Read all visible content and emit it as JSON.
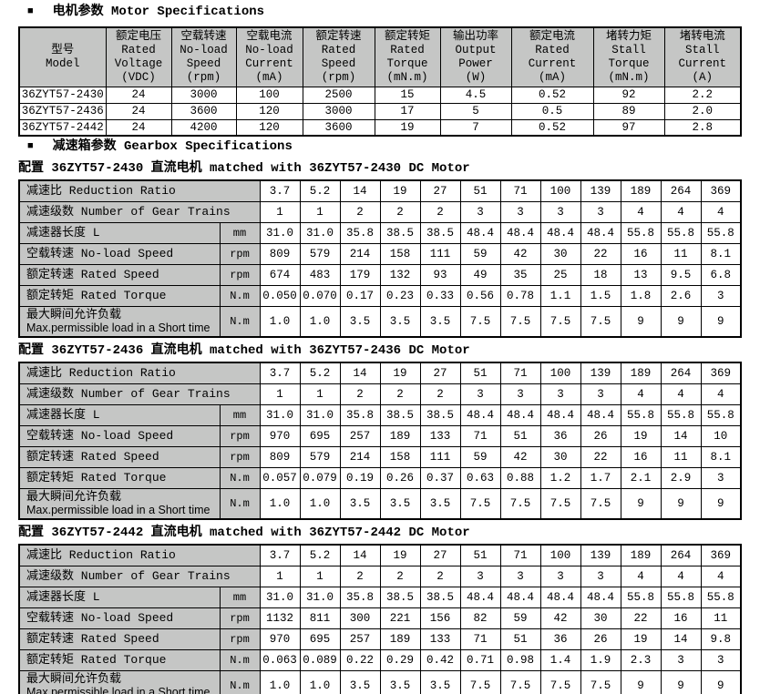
{
  "page": {
    "bullet": "■",
    "motor_section_title": "电机参数 Motor Specifications",
    "gearbox_section_title": "减速箱参数 Gearbox Specifications"
  },
  "colors": {
    "header_fill": "#c5c6c5",
    "border": "#000000",
    "page_background": "#ffffff"
  },
  "motor_table": {
    "headers": [
      {
        "lines": [
          "型号",
          "Model"
        ]
      },
      {
        "lines": [
          "额定电压",
          "Rated",
          "Voltage",
          "(VDC)"
        ]
      },
      {
        "lines": [
          "空载转速",
          "No-load",
          "Speed",
          "(rpm)"
        ]
      },
      {
        "lines": [
          "空载电流",
          "No-load",
          "Current",
          "(mA)"
        ]
      },
      {
        "lines": [
          "额定转速",
          "Rated",
          "Speed",
          "(rpm)"
        ]
      },
      {
        "lines": [
          "额定转矩",
          "Rated",
          "Torque",
          "(mN.m)"
        ]
      },
      {
        "lines": [
          "输出功率",
          "Output",
          "Power",
          "(W)"
        ]
      },
      {
        "lines": [
          "额定电流",
          "Rated",
          "Current",
          "(mA)"
        ]
      },
      {
        "lines": [
          "堵转力矩",
          "Stall",
          "Torque",
          "(mN.m)"
        ]
      },
      {
        "lines": [
          "堵转电流",
          "Stall",
          "Current",
          "(A)"
        ]
      }
    ],
    "rows": [
      [
        "36ZYT57-2430",
        "24",
        "3000",
        "100",
        "2500",
        "15",
        "4.5",
        "0.52",
        "92",
        "2.2"
      ],
      [
        "36ZYT57-2436",
        "24",
        "3600",
        "120",
        "3000",
        "17",
        "5",
        "0.5",
        "89",
        "2.0"
      ],
      [
        "36ZYT57-2442",
        "24",
        "4200",
        "120",
        "3600",
        "19",
        "7",
        "0.52",
        "97",
        "2.8"
      ]
    ]
  },
  "gearbox": {
    "row_labels": [
      {
        "label": "减速比 Reduction Ratio",
        "unit": null
      },
      {
        "label": "减速级数 Number of Gear Trains",
        "unit": null
      },
      {
        "label": "减速器长度 L",
        "unit": "mm"
      },
      {
        "label": "空载转速 No-load Speed",
        "unit": "rpm"
      },
      {
        "label": "额定转速 Rated Speed",
        "unit": "rpm"
      },
      {
        "label": "额定转矩 Rated Torque",
        "unit": "N.m"
      },
      {
        "label": "最大瞬间允许负载",
        "sub_label": "Max.permissible load in a Short time",
        "unit": "N.m"
      }
    ],
    "tables": [
      {
        "title": "配置 36ZYT57-2430 直流电机 matched with 36ZYT57-2430 DC Motor",
        "values": [
          [
            "3.7",
            "5.2",
            "14",
            "19",
            "27",
            "51",
            "71",
            "100",
            "139",
            "189",
            "264",
            "369"
          ],
          [
            "1",
            "1",
            "2",
            "2",
            "2",
            "3",
            "3",
            "3",
            "3",
            "4",
            "4",
            "4"
          ],
          [
            "31.0",
            "31.0",
            "35.8",
            "38.5",
            "38.5",
            "48.4",
            "48.4",
            "48.4",
            "48.4",
            "55.8",
            "55.8",
            "55.8"
          ],
          [
            "809",
            "579",
            "214",
            "158",
            "111",
            "59",
            "42",
            "30",
            "22",
            "16",
            "11",
            "8.1"
          ],
          [
            "674",
            "483",
            "179",
            "132",
            "93",
            "49",
            "35",
            "25",
            "18",
            "13",
            "9.5",
            "6.8"
          ],
          [
            "0.050",
            "0.070",
            "0.17",
            "0.23",
            "0.33",
            "0.56",
            "0.78",
            "1.1",
            "1.5",
            "1.8",
            "2.6",
            "3"
          ],
          [
            "1.0",
            "1.0",
            "3.5",
            "3.5",
            "3.5",
            "7.5",
            "7.5",
            "7.5",
            "7.5",
            "9",
            "9",
            "9"
          ]
        ]
      },
      {
        "title": "配置 36ZYT57-2436 直流电机 matched with 36ZYT57-2436 DC Motor",
        "values": [
          [
            "3.7",
            "5.2",
            "14",
            "19",
            "27",
            "51",
            "71",
            "100",
            "139",
            "189",
            "264",
            "369"
          ],
          [
            "1",
            "1",
            "2",
            "2",
            "2",
            "3",
            "3",
            "3",
            "3",
            "4",
            "4",
            "4"
          ],
          [
            "31.0",
            "31.0",
            "35.8",
            "38.5",
            "38.5",
            "48.4",
            "48.4",
            "48.4",
            "48.4",
            "55.8",
            "55.8",
            "55.8"
          ],
          [
            "970",
            "695",
            "257",
            "189",
            "133",
            "71",
            "51",
            "36",
            "26",
            "19",
            "14",
            "10"
          ],
          [
            "809",
            "579",
            "214",
            "158",
            "111",
            "59",
            "42",
            "30",
            "22",
            "16",
            "11",
            "8.1"
          ],
          [
            "0.057",
            "0.079",
            "0.19",
            "0.26",
            "0.37",
            "0.63",
            "0.88",
            "1.2",
            "1.7",
            "2.1",
            "2.9",
            "3"
          ],
          [
            "1.0",
            "1.0",
            "3.5",
            "3.5",
            "3.5",
            "7.5",
            "7.5",
            "7.5",
            "7.5",
            "9",
            "9",
            "9"
          ]
        ]
      },
      {
        "title": "配置 36ZYT57-2442 直流电机 matched with 36ZYT57-2442 DC Motor",
        "values": [
          [
            "3.7",
            "5.2",
            "14",
            "19",
            "27",
            "51",
            "71",
            "100",
            "139",
            "189",
            "264",
            "369"
          ],
          [
            "1",
            "1",
            "2",
            "2",
            "2",
            "3",
            "3",
            "3",
            "3",
            "4",
            "4",
            "4"
          ],
          [
            "31.0",
            "31.0",
            "35.8",
            "38.5",
            "38.5",
            "48.4",
            "48.4",
            "48.4",
            "48.4",
            "55.8",
            "55.8",
            "55.8"
          ],
          [
            "1132",
            "811",
            "300",
            "221",
            "156",
            "82",
            "59",
            "42",
            "30",
            "22",
            "16",
            "11"
          ],
          [
            "970",
            "695",
            "257",
            "189",
            "133",
            "71",
            "51",
            "36",
            "26",
            "19",
            "14",
            "9.8"
          ],
          [
            "0.063",
            "0.089",
            "0.22",
            "0.29",
            "0.42",
            "0.71",
            "0.98",
            "1.4",
            "1.9",
            "2.3",
            "3",
            "3"
          ],
          [
            "1.0",
            "1.0",
            "3.5",
            "3.5",
            "3.5",
            "7.5",
            "7.5",
            "7.5",
            "7.5",
            "9",
            "9",
            "9"
          ]
        ]
      }
    ]
  }
}
